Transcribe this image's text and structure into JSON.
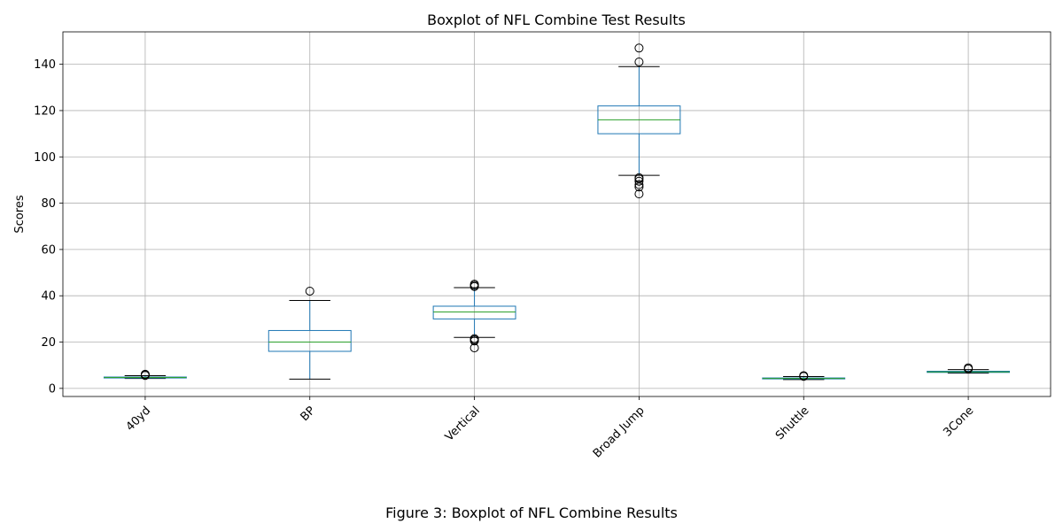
{
  "chart_data": {
    "type": "boxplot",
    "title": "Boxplot of NFL Combine Test Results",
    "xlabel": "",
    "ylabel": "Scores",
    "ylim": [
      -3.5,
      154
    ],
    "yticks": [
      0,
      20,
      40,
      60,
      80,
      100,
      120,
      140
    ],
    "grid": true,
    "categories": [
      "40yd",
      "BP",
      "Vertical",
      "Broad Jump",
      "Shuttle",
      "3Cone"
    ],
    "boxes": [
      {
        "label": "40yd",
        "whisker_low": 4.3,
        "q1": 4.5,
        "median": 4.7,
        "q3": 4.9,
        "whisker_high": 5.5,
        "fliers": [
          5.6,
          5.9,
          6.1
        ]
      },
      {
        "label": "BP",
        "whisker_low": 4,
        "q1": 16,
        "median": 20,
        "q3": 25,
        "whisker_high": 38,
        "fliers": [
          42
        ]
      },
      {
        "label": "Vertical",
        "whisker_low": 22,
        "q1": 30,
        "median": 33,
        "q3": 35.5,
        "whisker_high": 43.5,
        "fliers": [
          17.5,
          20.5,
          21,
          21.5,
          44,
          44.5,
          45
        ]
      },
      {
        "label": "Broad Jump",
        "whisker_low": 92,
        "q1": 110,
        "median": 116,
        "q3": 122,
        "whisker_high": 139,
        "fliers": [
          84,
          87,
          88,
          89.5,
          90.5,
          91,
          141,
          147
        ]
      },
      {
        "label": "Shuttle",
        "whisker_low": 3.8,
        "q1": 4.1,
        "median": 4.3,
        "q3": 4.5,
        "whisker_high": 5.1,
        "fliers": [
          5.2,
          5.5
        ]
      },
      {
        "label": "3Cone",
        "whisker_low": 6.6,
        "q1": 6.9,
        "median": 7.1,
        "q3": 7.4,
        "whisker_high": 8.1,
        "fliers": [
          8.4,
          8.9
        ]
      }
    ]
  },
  "figure_caption": "Figure 3: Boxplot of NFL Combine Results"
}
